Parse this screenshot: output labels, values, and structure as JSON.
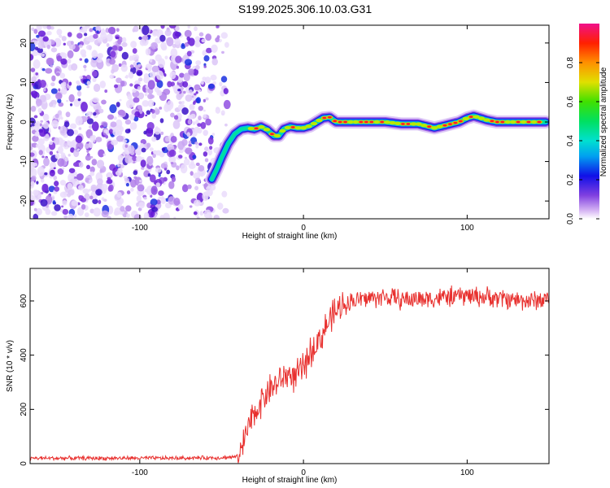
{
  "title": "S199.2025.306.10.03.G31",
  "chart_data": [
    {
      "type": "heatmap",
      "xlabel": "Height of straight line (km)",
      "ylabel": "Frequency (Hz)",
      "xlim": [
        -167,
        150
      ],
      "ylim": [
        -24.5,
        24.5
      ],
      "xticks": [
        -100,
        0,
        100
      ],
      "yticks": [
        -20,
        -10,
        0,
        10,
        20
      ],
      "noise_region_x": [
        -167,
        -47
      ],
      "ridge": {
        "x": [
          -56,
          -53,
          -50,
          -46,
          -42,
          -38,
          -34,
          -30,
          -26,
          -22,
          -18,
          -15,
          -12,
          -8,
          -4,
          0,
          4,
          8,
          12,
          16,
          20,
          30,
          40,
          50,
          60,
          70,
          75,
          80,
          85,
          90,
          95,
          100,
          104,
          108,
          112,
          118,
          130,
          140,
          148
        ],
        "freq": [
          -14.5,
          -12,
          -9,
          -5.5,
          -3,
          -1.8,
          -1.5,
          -1.8,
          -1.2,
          -2,
          -3.5,
          -3.5,
          -1.8,
          -1.2,
          -1.5,
          -1.5,
          -1,
          0,
          1,
          1.2,
          0,
          0,
          0,
          0,
          -0.5,
          -0.5,
          -1,
          -1.5,
          -1,
          -0.5,
          0,
          1,
          1.5,
          1,
          0.5,
          0,
          0,
          0,
          0
        ]
      },
      "colorbar": {
        "label": "Normalized spectral amplitude",
        "range": [
          0,
          1
        ],
        "ticks": [
          "0.0",
          "0.2",
          "0.4",
          "0.6",
          "0.8"
        ]
      }
    },
    {
      "type": "line",
      "xlabel": "Height of straight line (km)",
      "ylabel": "SNR (10 * v/v)",
      "xlim": [
        -167,
        150
      ],
      "ylim": [
        0,
        720
      ],
      "xticks": [
        -100,
        0,
        100
      ],
      "yticks": [
        0,
        200,
        400,
        600
      ],
      "color": "#e8302e",
      "series": [
        {
          "name": "SNR",
          "x": [
            -167,
            -140,
            -110,
            -80,
            -50,
            -40,
            -37,
            -35,
            -33,
            -30,
            -27,
            -24,
            -20,
            -15,
            -10,
            -5,
            0,
            5,
            10,
            15,
            20,
            25,
            30,
            40,
            50,
            60,
            80,
            100,
            120,
            140,
            150
          ],
          "y": [
            20,
            20,
            20,
            20,
            22,
            25,
            60,
            110,
            140,
            180,
            220,
            250,
            280,
            300,
            330,
            320,
            350,
            420,
            460,
            520,
            560,
            590,
            600,
            610,
            615,
            605,
            610,
            620,
            610,
            600,
            610
          ]
        }
      ]
    }
  ]
}
